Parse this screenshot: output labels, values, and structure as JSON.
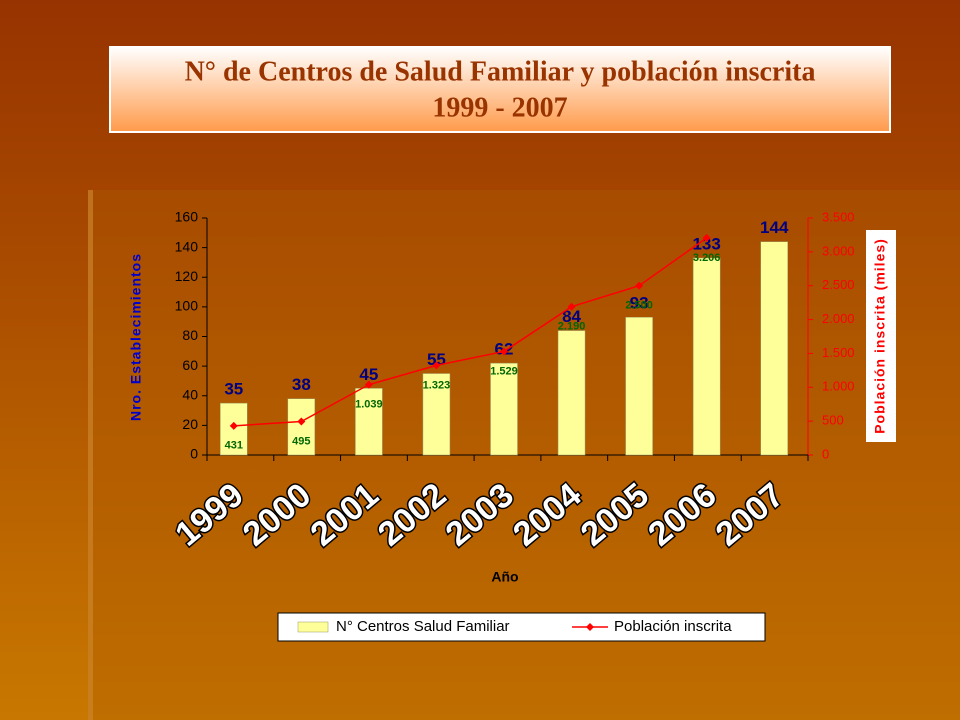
{
  "chart_data": {
    "type": "bar_line",
    "title": "N° de Centros de Salud Familiar y población inscrita",
    "subtitle": "1999 - 2007",
    "categories": [
      "1999",
      "2000",
      "2001",
      "2002",
      "2003",
      "2004",
      "2005",
      "2006",
      "2007"
    ],
    "x_label": "Año",
    "y_label": "Nro. Establecimientos",
    "y2_label": "Población inscrita (miles)",
    "series": [
      {
        "name": "N° Centros Salud Familiar",
        "type": "bar",
        "color": "#ffff99",
        "label_color": "#000080",
        "values": [
          35,
          38,
          45,
          55,
          62,
          84,
          93,
          133,
          144
        ]
      },
      {
        "name": "Población inscrita",
        "type": "line",
        "axis": "y2",
        "color": "#ff0000",
        "label_color": "#006600",
        "values": [
          431,
          495,
          1039,
          1323,
          1529,
          2190,
          2500,
          3206,
          null
        ],
        "value_labels": [
          "431",
          "495",
          "1.039",
          "1.323",
          "1.529",
          "2.190",
          "2.500",
          "3.206",
          null
        ]
      }
    ],
    "ylim": [
      0,
      160
    ],
    "yticks": [
      0,
      20,
      40,
      60,
      80,
      100,
      120,
      140,
      160
    ],
    "y2lim": [
      0,
      3500
    ],
    "y2ticks": [
      0,
      500,
      {
        "value": 1000,
        "label": "1.000"
      },
      {
        "value": 1500,
        "label": "1.500"
      },
      {
        "value": 2000,
        "label": "2.000"
      },
      {
        "value": 2500,
        "label": "2.500"
      },
      {
        "value": 3000,
        "label": "3.000"
      },
      {
        "value": 3500,
        "label": "3.500"
      }
    ],
    "legend": "bottom"
  }
}
